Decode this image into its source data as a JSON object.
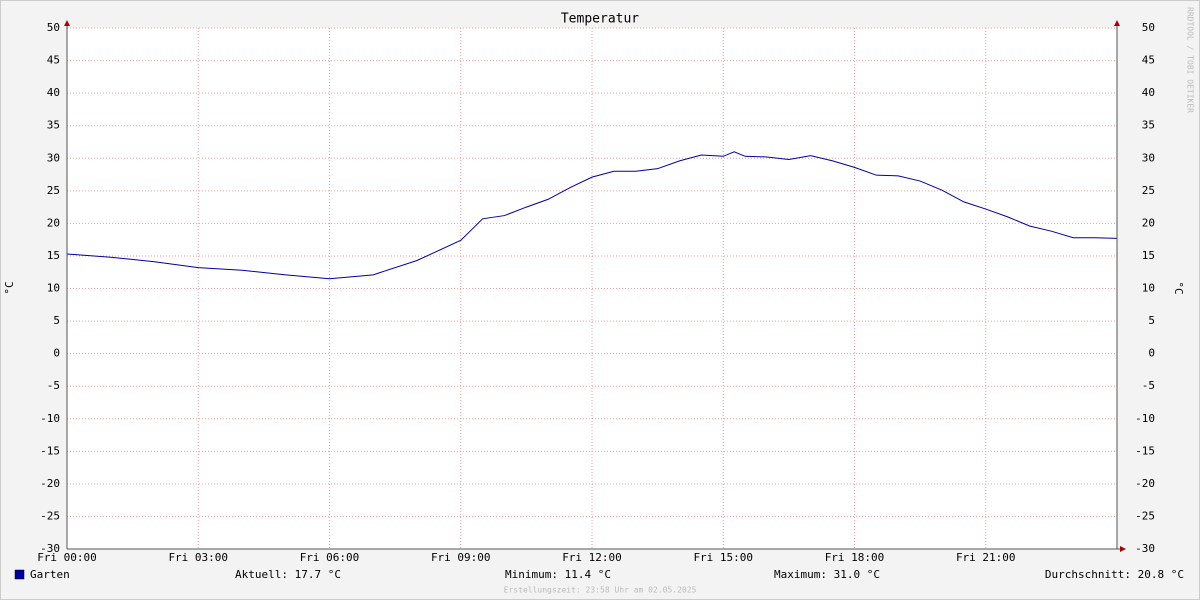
{
  "chart_data": {
    "type": "line",
    "title": "Temperatur",
    "y_label": "°C",
    "x": [
      0,
      1,
      2,
      3,
      4,
      5,
      6,
      7,
      8,
      9,
      9.5,
      10,
      10.5,
      11,
      11.5,
      12,
      12.5,
      13,
      13.5,
      14,
      14.5,
      15,
      15.25,
      15.5,
      16,
      16.5,
      17,
      17.5,
      18,
      18.5,
      19,
      19.5,
      20,
      20.5,
      21,
      21.5,
      22,
      22.5,
      23,
      23.5,
      24
    ],
    "series": [
      {
        "name": "Garten",
        "color": "#0000a0",
        "values": [
          15.3,
          14.8,
          14.1,
          13.2,
          12.8,
          12.1,
          11.5,
          12.1,
          14.3,
          17.4,
          20.7,
          21.2,
          22.5,
          23.7,
          25.5,
          27.1,
          28.0,
          28.0,
          28.4,
          29.6,
          30.5,
          30.3,
          31.0,
          30.3,
          30.2,
          29.8,
          30.4,
          29.6,
          28.6,
          27.4,
          27.3,
          26.5,
          25.1,
          23.3,
          22.2,
          21.0,
          19.6,
          18.8,
          17.8,
          17.8,
          17.7
        ]
      }
    ],
    "xlim": [
      0,
      24
    ],
    "xticks": [
      {
        "value": 0,
        "label": "Fri 00:00"
      },
      {
        "value": 3,
        "label": "Fri 03:00"
      },
      {
        "value": 6,
        "label": "Fri 06:00"
      },
      {
        "value": 9,
        "label": "Fri 09:00"
      },
      {
        "value": 12,
        "label": "Fri 12:00"
      },
      {
        "value": 15,
        "label": "Fri 15:00"
      },
      {
        "value": 18,
        "label": "Fri 18:00"
      },
      {
        "value": 21,
        "label": "Fri 21:00"
      }
    ],
    "ylim": [
      -30,
      50
    ],
    "yticks": [
      -30,
      -25,
      -20,
      -15,
      -10,
      -5,
      0,
      5,
      10,
      15,
      20,
      25,
      30,
      35,
      40,
      45,
      50
    ],
    "grid": true,
    "legend_stats": [
      "Aktuell: 17.7 °C",
      "Minimum: 11.4 °C",
      "Maximum: 31.0 °C",
      "Durchschnitt: 20.8 °C"
    ],
    "footer": "Erstellungszeit: 23:58 Uhr am 02.05.2025",
    "watermark": "RRDTOOL / TOBI OETIKER"
  }
}
